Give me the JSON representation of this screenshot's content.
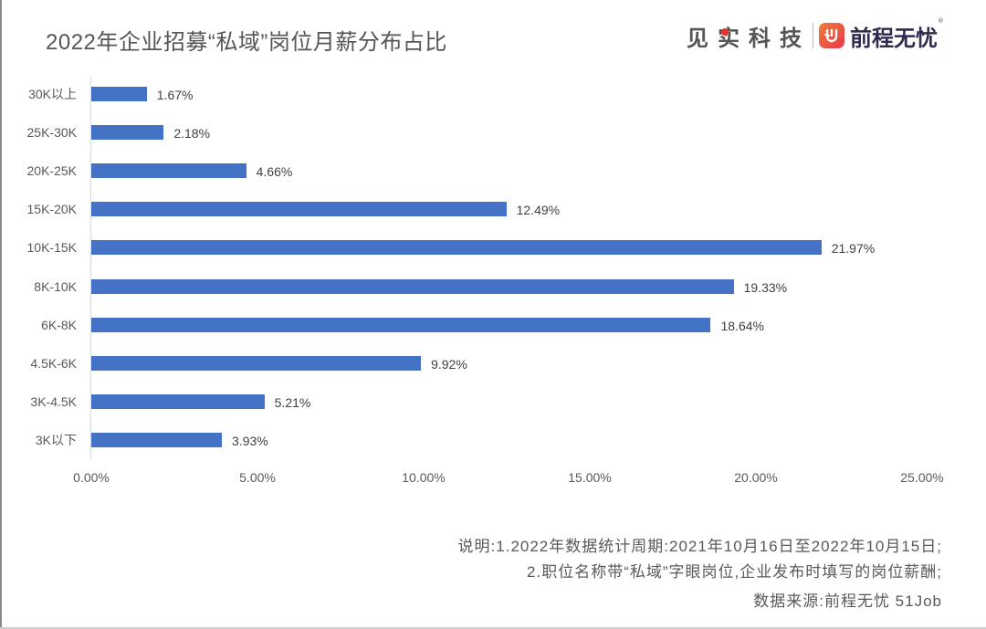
{
  "header": {
    "title": "2022年企业招募“私域”岗位月薪分布占比",
    "logo_left": "见实科技",
    "logo_right": "前程无忧",
    "logo_right_mark": "®"
  },
  "colors": {
    "bar": "#4472c4",
    "text": "#595959",
    "logo_accent": "#e8332a"
  },
  "chart_data": {
    "type": "bar",
    "orientation": "horizontal",
    "title": "2022年企业招募“私域”岗位月薪分布占比",
    "xlabel": "",
    "ylabel": "",
    "categories": [
      "30K以上",
      "25K-30K",
      "20K-25K",
      "15K-20K",
      "10K-15K",
      "8K-10K",
      "6K-8K",
      "4.5K-6K",
      "3K-4.5K",
      "3K以下"
    ],
    "values": [
      1.67,
      2.18,
      4.66,
      12.49,
      21.97,
      19.33,
      18.64,
      9.92,
      5.21,
      3.93
    ],
    "value_labels": [
      "1.67%",
      "2.18%",
      "4.66%",
      "12.49%",
      "21.97%",
      "19.33%",
      "18.64%",
      "9.92%",
      "5.21%",
      "3.93%"
    ],
    "xlim": [
      0,
      25
    ],
    "x_ticks": [
      "0.00%",
      "5.00%",
      "10.00%",
      "15.00%",
      "20.00%",
      "25.00%"
    ],
    "grid": false,
    "legend": null,
    "series_color": "#4472c4"
  },
  "notes": {
    "line1": "说明:1.2022年数据统计周期:2021年10月16日至2022年10月15日;",
    "line2": "2.职位名称带“私域”字眼岗位,企业发布时填写的岗位薪酬;",
    "source": "数据来源:前程无忧 51Job"
  }
}
